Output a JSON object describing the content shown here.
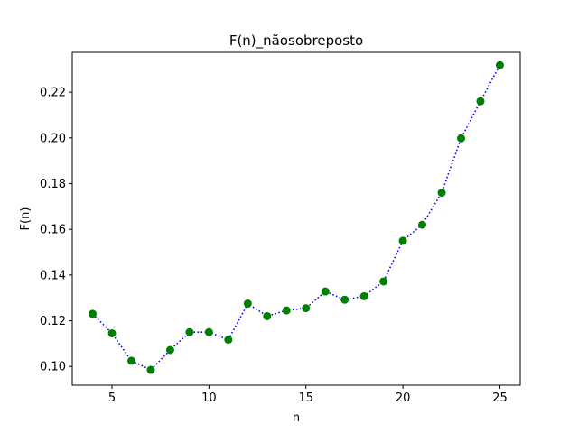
{
  "chart_data": {
    "type": "line",
    "title": "F(n)_nãosobreposto",
    "xlabel": "n",
    "ylabel": "F(n)",
    "xlim": [
      2.95,
      26.05
    ],
    "ylim": [
      0.0918,
      0.2374
    ],
    "xticks": [
      5,
      10,
      15,
      20,
      25
    ],
    "yticks": [
      0.1,
      0.12,
      0.14,
      0.16,
      0.18,
      0.2,
      0.22
    ],
    "xtick_labels": [
      "5",
      "10",
      "15",
      "20",
      "25"
    ],
    "ytick_labels": [
      "0.10",
      "0.12",
      "0.14",
      "0.16",
      "0.18",
      "0.20",
      "0.22"
    ],
    "grid": false,
    "series": [
      {
        "line_color": "#0000ff",
        "line_style": "dotted",
        "marker_color": "#007f00",
        "x": [
          4,
          5,
          6,
          7,
          8,
          9,
          10,
          11,
          12,
          13,
          14,
          15,
          16,
          17,
          18,
          19,
          20,
          21,
          22,
          23,
          24,
          25
        ],
        "y": [
          0.123,
          0.1145,
          0.1025,
          0.0985,
          0.1072,
          0.115,
          0.115,
          0.1117,
          0.1275,
          0.122,
          0.1245,
          0.1255,
          0.1328,
          0.1292,
          0.1307,
          0.1372,
          0.155,
          0.162,
          0.176,
          0.1998,
          0.216,
          0.2318
        ]
      }
    ]
  }
}
